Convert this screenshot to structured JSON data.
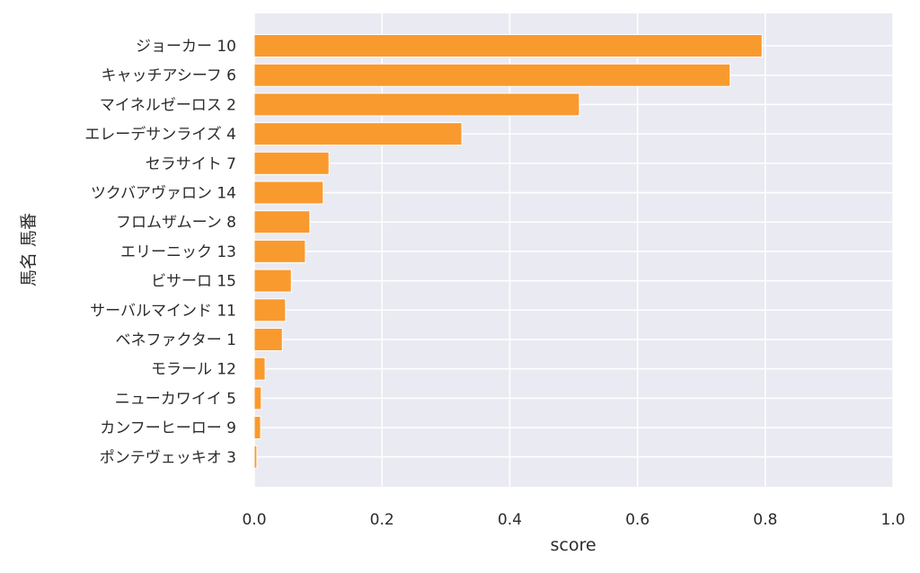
{
  "chart_data": {
    "type": "bar",
    "orientation": "horizontal",
    "title": "",
    "xlabel": "score",
    "ylabel": "馬名 馬番",
    "xlim": [
      0,
      1.0
    ],
    "xticks": [
      "0.0",
      "0.2",
      "0.4",
      "0.6",
      "0.8",
      "1.0"
    ],
    "grid": true,
    "bar_color": "#f99a2e",
    "background_color": "#eaeaf2",
    "categories": [
      "ジョーカー 10",
      "キャッチアシーフ 6",
      "マイネルゼーロス 2",
      "エレーデサンライズ 4",
      "セラサイト 7",
      "ツクバアヴァロン 14",
      "フロムザムーン 8",
      "エリーニック 13",
      "ビサーロ 15",
      "サーバルマインド 11",
      "ベネファクター 1",
      "モラール 12",
      "ニューカワイイ 5",
      "カンフーヒーロー 9",
      "ポンテヴェッキオ 3"
    ],
    "values": [
      0.795,
      0.745,
      0.509,
      0.325,
      0.117,
      0.108,
      0.087,
      0.08,
      0.058,
      0.049,
      0.044,
      0.017,
      0.011,
      0.01,
      0.004
    ]
  }
}
